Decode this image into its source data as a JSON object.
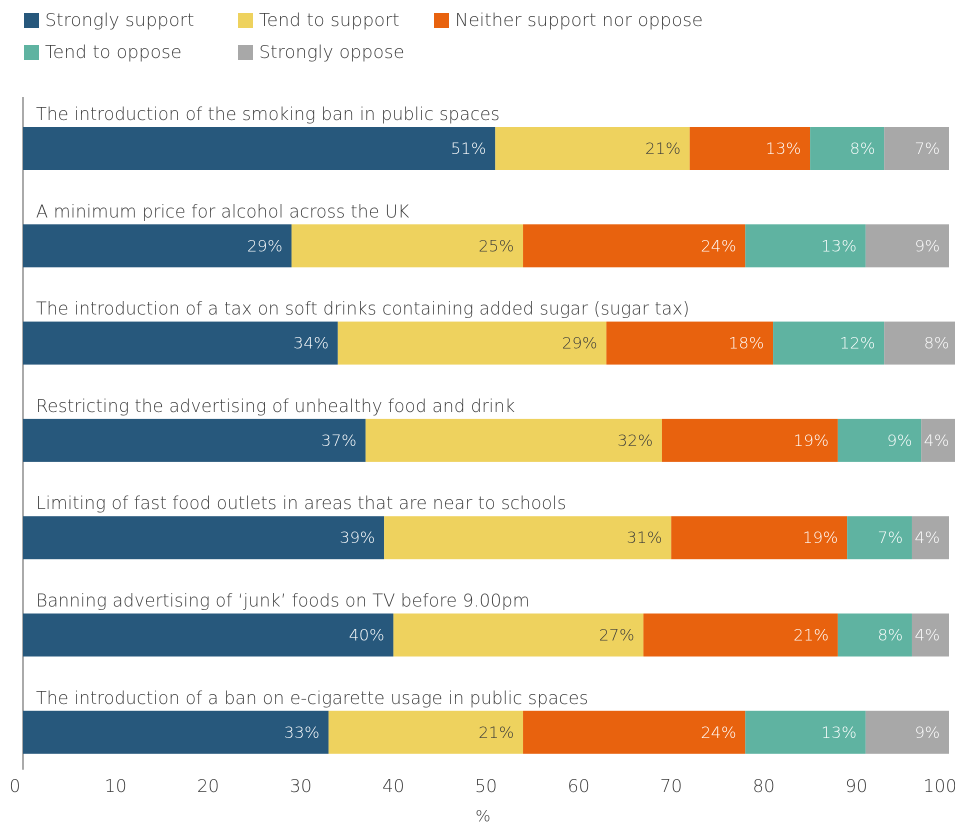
{
  "chart_data": {
    "type": "bar",
    "orientation": "horizontal",
    "stacked": true,
    "categories": [
      "The introduction of the smoking ban in public spaces",
      "A minimum price for alcohol across the UK",
      "The introduction of a tax on soft drinks containing added sugar (sugar tax)",
      "Restricting the advertising of unhealthy food and drink",
      "Limiting of fast food outlets in areas that are near to schools",
      "Banning advertising of ‘junk’ foods on TV before 9.00pm",
      "The introduction of a ban on e-cigarette usage in public spaces"
    ],
    "series": [
      {
        "name": "Strongly support",
        "color": "#27587c",
        "values": [
          51,
          29,
          34,
          37,
          39,
          40,
          33
        ]
      },
      {
        "name": "Tend to support",
        "color": "#eed25e",
        "values": [
          21,
          25,
          29,
          32,
          31,
          27,
          21
        ]
      },
      {
        "name": "Neither support nor oppose",
        "color": "#e8620e",
        "values": [
          13,
          24,
          18,
          19,
          19,
          21,
          24
        ]
      },
      {
        "name": "Tend to oppose",
        "color": "#5fb3a1",
        "values": [
          8,
          13,
          12,
          9,
          7,
          8,
          13
        ]
      },
      {
        "name": "Strongly oppose",
        "color": "#a8a8a8",
        "values": [
          7,
          9,
          8,
          4,
          4,
          4,
          9
        ]
      }
    ],
    "value_suffix": "%",
    "xlabel": "%",
    "xlim": [
      0,
      100
    ],
    "xticks": [
      "0",
      "10",
      "20",
      "30",
      "40",
      "50",
      "60",
      "70",
      "80",
      "90",
      "100"
    ],
    "legend_position": "top",
    "grid": false
  }
}
